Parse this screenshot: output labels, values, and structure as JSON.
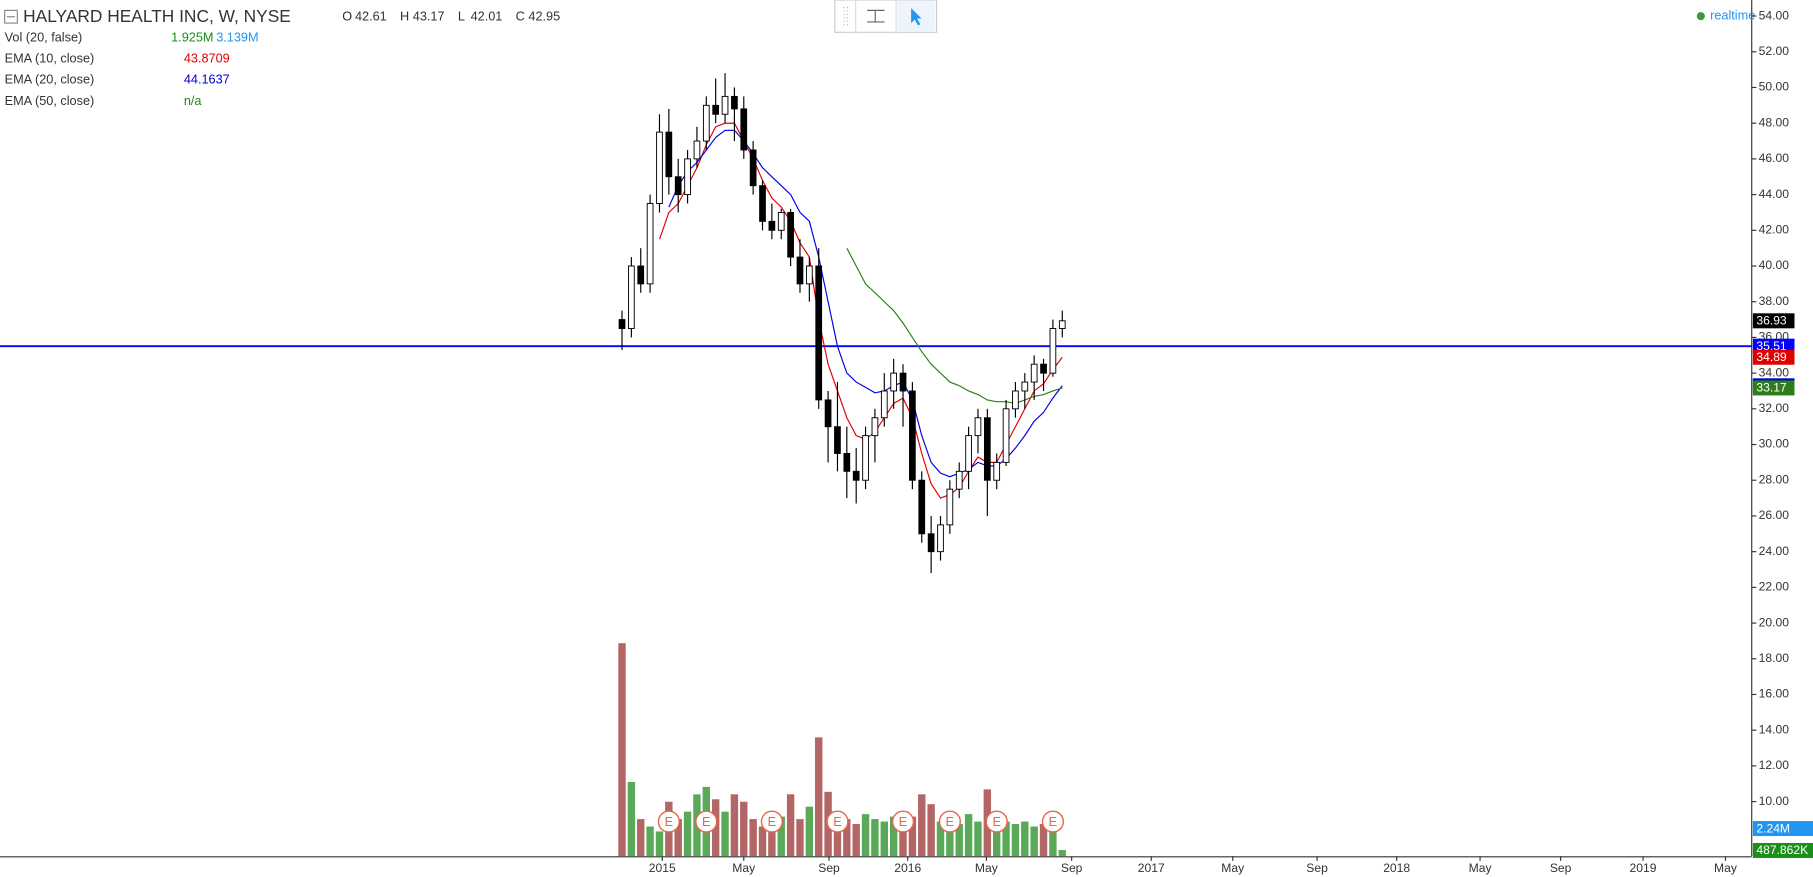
{
  "chart_data": {
    "type": "candlestick",
    "title": "HALYARD HEALTH INC, W, NYSE",
    "ohlc_header": [
      {
        "label": "O",
        "value": 42.61
      },
      {
        "label": "H",
        "value": 43.17
      },
      {
        "label": "L",
        "value": 42.01
      },
      {
        "label": "C",
        "value": 42.95
      }
    ],
    "indicators": [
      {
        "name": "Vol (20, false)",
        "values": [
          "1.925M",
          "3.139M"
        ],
        "colors": [
          "#1a8f1a",
          "#2196f3"
        ]
      },
      {
        "name": "EMA (10, close)",
        "values": [
          43.8709
        ],
        "colors": [
          "#e00000"
        ]
      },
      {
        "name": "EMA (20, close)",
        "values": [
          44.1637
        ],
        "colors": [
          "#0000e0"
        ]
      },
      {
        "name": "EMA (50, close)",
        "values": [
          "n/a"
        ],
        "colors": [
          "#2e7d1a"
        ]
      }
    ],
    "status": "realtime",
    "categories": [
      null,
      null,
      null,
      null,
      null,
      null,
      null,
      null,
      null,
      null,
      null,
      null,
      null,
      null,
      null,
      null,
      null,
      null,
      null,
      null,
      null,
      null,
      null,
      null,
      null,
      null,
      null,
      null,
      null,
      null,
      null,
      null,
      null,
      null,
      null,
      null,
      null,
      null,
      null,
      null,
      null,
      null,
      null,
      null,
      null,
      null,
      null,
      null
    ],
    "open": [
      37,
      36.5,
      40,
      39,
      43.5,
      47.5,
      45,
      44,
      46,
      47,
      49,
      48.5,
      49.5,
      48.8,
      46.5,
      44.5,
      42.5,
      42,
      43,
      40.5,
      39,
      40,
      32.5,
      31,
      29.5,
      28.5,
      28,
      30.5,
      31.5,
      33,
      34,
      33,
      28,
      25,
      24,
      25.5,
      27.5,
      28.5,
      30.5,
      31.5,
      28,
      29,
      32,
      33,
      33.5,
      34.5,
      34,
      36.5
    ],
    "high": [
      37.5,
      40.5,
      41,
      44,
      48.5,
      48.8,
      46,
      46.5,
      47.8,
      49.5,
      50.5,
      50.8,
      50,
      49.5,
      47,
      44.8,
      43.5,
      43.2,
      43.2,
      41.5,
      40.5,
      41,
      33,
      33.5,
      31,
      29.8,
      31,
      32,
      34,
      34.8,
      34.5,
      33.5,
      28.5,
      26,
      26,
      28,
      29,
      31,
      32,
      32,
      29.5,
      32.5,
      33.5,
      34,
      35,
      34.8,
      37,
      37.5
    ],
    "low": [
      35.3,
      36,
      38.5,
      38.5,
      43,
      44,
      43,
      43.5,
      45.5,
      46.5,
      48,
      48,
      47,
      46,
      44,
      42,
      41.5,
      41.5,
      40,
      38.5,
      38,
      32,
      29,
      28.5,
      27,
      26.7,
      27.5,
      29,
      31,
      32,
      31,
      27.5,
      24.5,
      22.8,
      23.5,
      25,
      27,
      27.5,
      29.5,
      26,
      27.5,
      28.8,
      31.5,
      32,
      32.5,
      33,
      33.8,
      36
    ],
    "close": [
      36.5,
      40,
      39,
      43.5,
      47.5,
      45,
      44,
      46,
      47,
      49,
      48.5,
      49.5,
      48.8,
      46.5,
      44.5,
      42.5,
      42,
      43,
      40.5,
      39,
      40,
      32.5,
      31,
      29.5,
      28.5,
      28,
      30.5,
      31.5,
      33,
      34,
      33,
      28,
      25,
      24,
      25.5,
      27.5,
      28.5,
      30.5,
      31.5,
      28,
      29,
      32,
      33,
      33.5,
      34.5,
      34,
      36.5,
      36.93
    ],
    "up_color": "#ffffff",
    "down_color": "#000000",
    "volume": [
      17.2,
      6,
      3,
      2.4,
      2,
      4.4,
      3,
      3.6,
      5,
      5.6,
      4.6,
      3.6,
      5,
      4.4,
      3,
      2.4,
      2.6,
      3.2,
      5,
      3,
      4,
      9.6,
      5.2,
      3.6,
      3,
      2.6,
      3.4,
      3,
      2.8,
      3.2,
      3.6,
      3.2,
      5,
      4.2,
      2.8,
      3,
      2.6,
      3.4,
      2.8,
      5.4,
      3.4,
      2.8,
      2.6,
      2.8,
      2.4,
      2.6,
      3.2,
      0.5
    ],
    "volume_up_color": "#3c9a3c",
    "volume_down_color": "#a54b4b",
    "vlim": [
      0,
      20.5
    ],
    "series": [
      {
        "name": "EMA (10, close)",
        "color": "#e00000",
        "values": [
          null,
          null,
          null,
          null,
          41.5,
          43,
          43.5,
          44.5,
          45.5,
          46.8,
          47.8,
          48,
          48,
          47,
          46,
          44.8,
          43.8,
          43.3,
          42.5,
          41.3,
          40.5,
          37,
          34.5,
          33,
          31.5,
          30.5,
          30.3,
          30.7,
          31.5,
          32.3,
          32.6,
          31.5,
          29.5,
          27.8,
          27,
          27.2,
          27.6,
          28.5,
          29.3,
          29,
          29,
          30,
          31,
          32,
          33,
          33.4,
          34.2,
          34.89
        ]
      },
      {
        "name": "EMA (20, close)",
        "color": "#0000e0",
        "values": [
          null,
          null,
          null,
          null,
          null,
          43.3,
          44.5,
          45.3,
          45.8,
          46.5,
          47.2,
          47.6,
          47.6,
          47,
          46.3,
          45.5,
          45,
          44.5,
          44,
          43,
          42.5,
          40.5,
          38,
          35.5,
          34,
          33.5,
          33.2,
          32.9,
          33,
          33.3,
          33.5,
          32.5,
          30.5,
          29,
          28.4,
          28.2,
          28.4,
          28.6,
          29,
          28.8,
          28.8,
          29.2,
          29.8,
          30.5,
          31.3,
          31.8,
          32.6,
          33.29
        ]
      },
      {
        "name": "EMA (50, close)",
        "color": "#2e7d1a",
        "values": [
          null,
          null,
          null,
          null,
          null,
          null,
          null,
          null,
          null,
          null,
          null,
          null,
          null,
          null,
          null,
          null,
          null,
          null,
          null,
          null,
          null,
          null,
          null,
          null,
          41,
          40,
          39,
          38.5,
          38,
          37.5,
          36.8,
          36,
          35.2,
          34.5,
          34,
          33.5,
          33.3,
          33,
          32.8,
          32.5,
          32.4,
          32.4,
          32.3,
          32.5,
          32.7,
          32.8,
          33,
          33.17
        ]
      }
    ],
    "price_line": {
      "value": 35.51,
      "color": "#0000ff"
    },
    "last_color": "#000000",
    "vol_tags": [
      {
        "value": 2.24,
        "label": "2.24M",
        "color": "#2196f3"
      },
      {
        "value": 0.487862,
        "label": "487.862K",
        "color": "#1a8f1a"
      }
    ],
    "earnings": [
      {
        "x": 5,
        "label": "E"
      },
      {
        "x": 9,
        "label": "E"
      },
      {
        "x": 16,
        "label": "E"
      },
      {
        "x": 23,
        "label": "E"
      },
      {
        "x": 30,
        "label": "E"
      },
      {
        "x": 35,
        "label": "E"
      },
      {
        "x": 40,
        "label": "E"
      },
      {
        "x": 46,
        "label": "E"
      }
    ],
    "xlim": [
      -66.4,
      120.6
    ],
    "xticks": [
      {
        "value": 4.3,
        "label": "2015"
      },
      {
        "value": 13,
        "label": "May"
      },
      {
        "value": 22.1,
        "label": "Sep"
      },
      {
        "value": 30.5,
        "label": "2016"
      },
      {
        "value": 38.9,
        "label": "May"
      },
      {
        "value": 48,
        "label": "Sep"
      },
      {
        "value": 56.5,
        "label": "2017"
      },
      {
        "value": 65.2,
        "label": "May"
      },
      {
        "value": 74.2,
        "label": "Sep"
      },
      {
        "value": 82.7,
        "label": "2018"
      },
      {
        "value": 91.6,
        "label": "May"
      },
      {
        "value": 100.2,
        "label": "Sep"
      },
      {
        "value": 109,
        "label": "2019"
      },
      {
        "value": 117.8,
        "label": "May"
      }
    ],
    "ylim": [
      6.94,
      54.9
    ],
    "yticks": [
      {
        "value": 54,
        "label": "54.00"
      },
      {
        "value": 52,
        "label": "52.00"
      },
      {
        "value": 50,
        "label": "50.00"
      },
      {
        "value": 48,
        "label": "48.00"
      },
      {
        "value": 46,
        "label": "46.00"
      },
      {
        "value": 44,
        "label": "44.00"
      },
      {
        "value": 42,
        "label": "42.00"
      },
      {
        "value": 40,
        "label": "40.00"
      },
      {
        "value": 38,
        "label": "38.00"
      },
      {
        "value": 36,
        "label": "36.00"
      },
      {
        "value": 34,
        "label": "34.00"
      },
      {
        "value": 32,
        "label": "32.00"
      },
      {
        "value": 30,
        "label": "30.00"
      },
      {
        "value": 28,
        "label": "28.00"
      },
      {
        "value": 26,
        "label": "26.00"
      },
      {
        "value": 24,
        "label": "24.00"
      },
      {
        "value": 22,
        "label": "22.00"
      },
      {
        "value": 20,
        "label": "20.00"
      },
      {
        "value": 18,
        "label": "18.00"
      },
      {
        "value": 16,
        "label": "16.00"
      },
      {
        "value": 14,
        "label": "14.00"
      },
      {
        "value": 12,
        "label": "12.00"
      },
      {
        "value": 10,
        "label": "10.00"
      }
    ],
    "grid": false
  }
}
